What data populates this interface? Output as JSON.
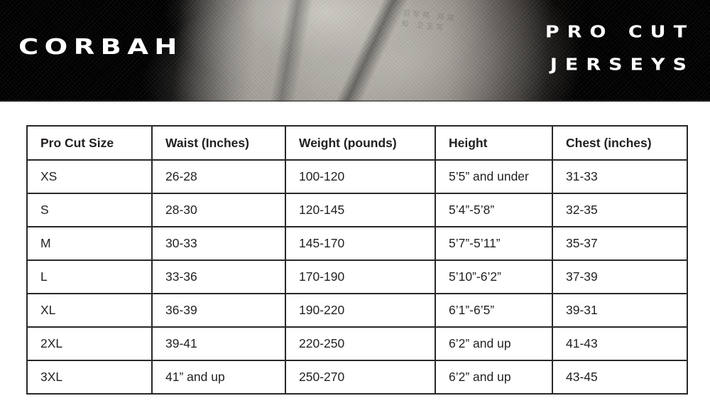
{
  "banner": {
    "brand": "CORBAH",
    "title_line1": "PRO CUT",
    "title_line2": "JERSEYS",
    "fabric_print_glyphs": "羽写祠 邓寇知 卫玉写",
    "colors": {
      "banner_black": "#000000",
      "fabric_gray": "#aba7a1",
      "logo_text": "#ffffff"
    }
  },
  "table": {
    "headers": {
      "size": "Pro Cut Size",
      "waist": "Waist (Inches)",
      "weight": "Weight (pounds)",
      "height": "Height",
      "chest": "Chest (inches)"
    },
    "rows": [
      {
        "size": "XS",
        "waist": "26-28",
        "weight": "100-120",
        "height": "5’5” and under",
        "chest": "31-33"
      },
      {
        "size": "S",
        "waist": "28-30",
        "weight": "120-145",
        "height": "5’4”-5’8”",
        "chest": "32-35"
      },
      {
        "size": "M",
        "waist": "30-33",
        "weight": "145-170",
        "height": "5’7”-5’11”",
        "chest": "35-37"
      },
      {
        "size": "L",
        "waist": "33-36",
        "weight": "170-190",
        "height": "5’10”-6’2”",
        "chest": "37-39"
      },
      {
        "size": "XL",
        "waist": "36-39",
        "weight": "190-220",
        "height": "6’1”-6’5”",
        "chest": "39-31"
      },
      {
        "size": "2XL",
        "waist": "39-41",
        "weight": "220-250",
        "height": "6’2” and up",
        "chest": "41-43"
      },
      {
        "size": "3XL",
        "waist": "41” and up",
        "weight": "250-270",
        "height": "6’2” and up",
        "chest": "43-45"
      }
    ]
  }
}
